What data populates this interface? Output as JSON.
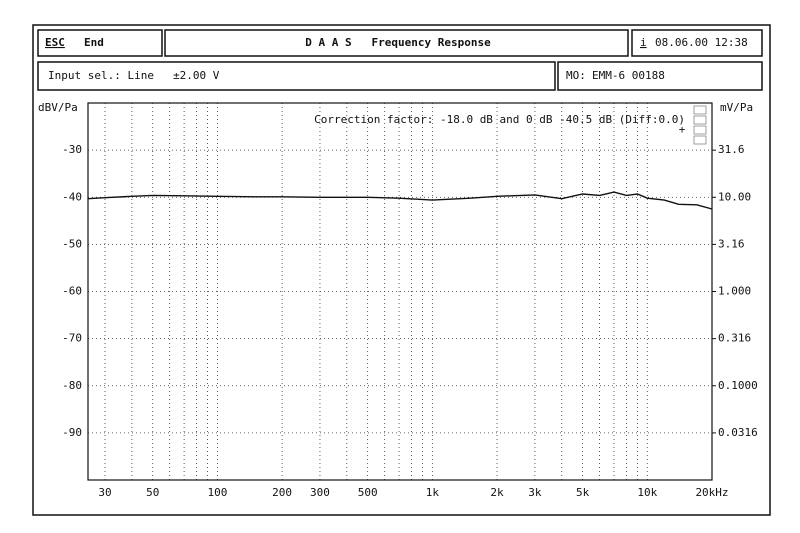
{
  "header": {
    "esc_key": "ESC",
    "esc_label": "End",
    "title": "D A A S   Frequency Response",
    "info_key": "i",
    "datetime": "08.06.00 12:38",
    "input": "Input sel.: Line",
    "range": "±2.00 V",
    "mo_key": "MO:",
    "mo_value": "EMM-6 00188"
  },
  "chart_data": {
    "type": "line",
    "annotation": "Correction factor: -18.0 dB and 0 dB -40.5 dB (Diff:0.0)",
    "y_label": "dBV/Pa",
    "y2_label": "mV/Pa",
    "color": "#111111",
    "x_log": true,
    "y2_log": true,
    "grid": true,
    "x": [
      25,
      30,
      40,
      50,
      70,
      100,
      150,
      200,
      300,
      500,
      700,
      1000,
      1500,
      2000,
      3000,
      4000,
      5000,
      6000,
      7000,
      8000,
      9000,
      10000,
      12000,
      14000,
      17000,
      20000
    ],
    "values": [
      -40.3,
      -40.1,
      -39.8,
      -39.6,
      -39.7,
      -39.8,
      -39.9,
      -39.9,
      -40,
      -40,
      -40.2,
      -40.6,
      -40.2,
      -39.8,
      -39.5,
      -40.3,
      -39.3,
      -39.6,
      -38.9,
      -39.6,
      -39.3,
      -40.2,
      -40.6,
      -41.5,
      -41.6,
      -42.5
    ],
    "xlim": [
      25,
      20000
    ],
    "xticks": [
      30,
      50,
      100,
      200,
      300,
      500,
      {
        "value": 1000,
        "label": "1k"
      },
      {
        "value": 2000,
        "label": "2k"
      },
      {
        "value": 3000,
        "label": "3k"
      },
      {
        "value": 5000,
        "label": "5k"
      },
      {
        "value": 10000,
        "label": "10k"
      },
      {
        "value": 20000,
        "label": "20kHz"
      }
    ],
    "xminorticks": [
      40,
      60,
      70,
      80,
      90,
      400,
      600,
      700,
      800,
      900,
      4000,
      6000,
      7000,
      8000,
      9000
    ],
    "ylim": [
      -100,
      -20
    ],
    "yticks": [
      -30,
      -40,
      -50,
      -60,
      -70,
      -80,
      -90
    ],
    "y2lim": [
      0.01,
      100
    ],
    "y2ticks": [
      31.6,
      {
        "value": 10,
        "label": "10.00"
      },
      3.16,
      {
        "value": 1,
        "label": "1.000"
      },
      0.316,
      {
        "value": 0.1,
        "label": "0.1000"
      },
      0.0316
    ]
  }
}
